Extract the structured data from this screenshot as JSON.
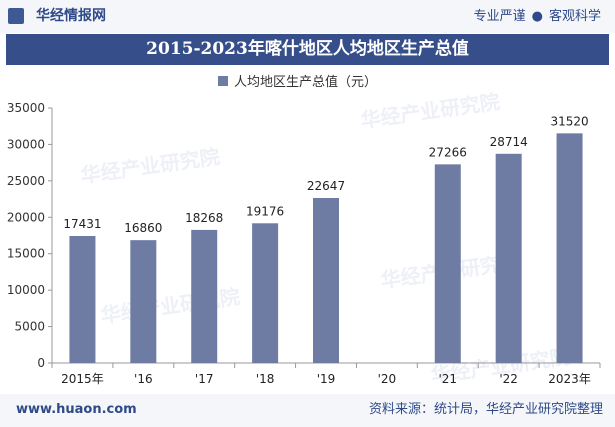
{
  "header": {
    "site_name": "华经情报网",
    "tagline_left": "专业严谨",
    "tagline_right": "客观科学"
  },
  "footer": {
    "url": "www.huaon.com",
    "source": "资料来源：统计局，华经产业研究院整理"
  },
  "watermark": {
    "text": "华经产业研究院"
  },
  "chart_data": {
    "type": "bar",
    "title": "2015-2023年喀什地区人均地区生产总值",
    "legend": {
      "label": "人均地区生产总值（元）",
      "placement": "top-center"
    },
    "categories": [
      "2015年",
      "'16",
      "'17",
      "'18",
      "'19",
      "'20",
      "'21",
      "'22",
      "2023年"
    ],
    "series": [
      {
        "name": "人均地区生产总值（元）",
        "values": [
          17431,
          16860,
          18268,
          19176,
          22647,
          null,
          27266,
          28714,
          31520
        ]
      }
    ],
    "ylim": [
      0,
      35000
    ],
    "yticks": [
      0,
      5000,
      10000,
      15000,
      20000,
      25000,
      30000,
      35000
    ],
    "grid": false,
    "colors": {
      "bar": "#6e7ca3",
      "title_bg": "#364f8b"
    }
  }
}
